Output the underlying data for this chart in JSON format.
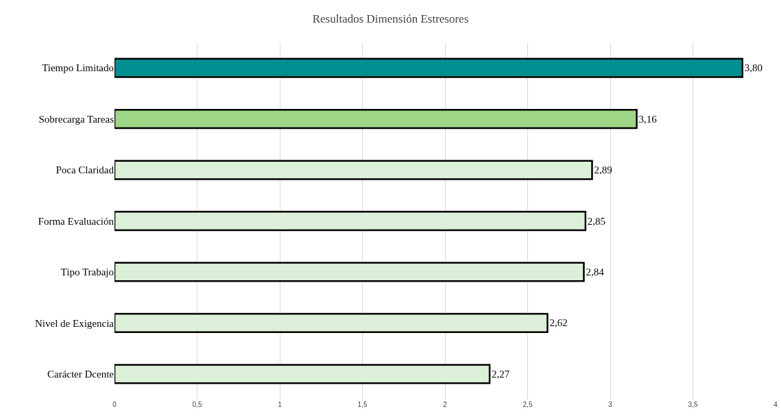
{
  "chart_data": {
    "type": "bar",
    "orientation": "horizontal",
    "title": "Resultados Dimensión Estresores",
    "categories": [
      "Tiempo Limitado",
      "Sobrecarga Tareas",
      "Poca Claridad",
      "Forma Evaluación",
      "Tipo Trabajo",
      "Nivel de Exigencia",
      "Carácter Dcente"
    ],
    "values": [
      3.8,
      3.16,
      2.89,
      2.85,
      2.84,
      2.62,
      2.27
    ],
    "value_labels": [
      "3,80",
      "3,16",
      "2,89",
      "2,85",
      "2,84",
      "2,62",
      "2,27"
    ],
    "colors": [
      "#008f91",
      "#9dd686",
      "#dcefd8",
      "#dcefd8",
      "#dcefd8",
      "#dcefd8",
      "#dcefd8"
    ],
    "xlim": [
      0,
      4
    ],
    "xticks": [
      0,
      {
        "value": 0.5,
        "label": "0,5"
      },
      1,
      {
        "value": 1.5,
        "label": "1,5"
      },
      2,
      {
        "value": 2.5,
        "label": "2,5"
      },
      3,
      {
        "value": 3.5,
        "label": "3,5"
      },
      4
    ],
    "grid": "x",
    "legend": false
  }
}
